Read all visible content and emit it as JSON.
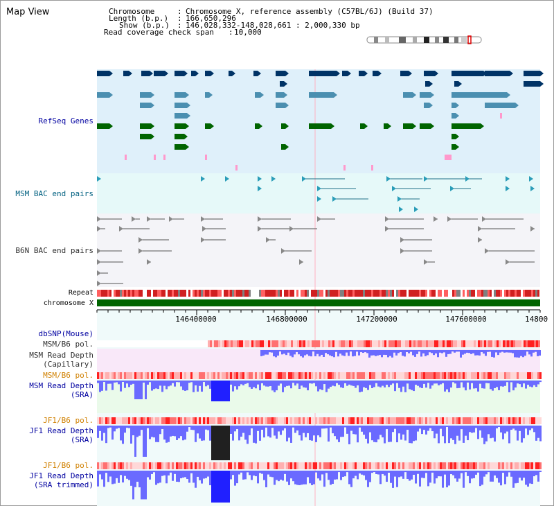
{
  "title": "Map View",
  "info": {
    "chromosome_key": "Chromosome",
    "chromosome_val": "Chromosome X, reference assembly (C57BL/6J) (Build 37)",
    "length_key": "Length (b.p.)",
    "length_val": "166,650,296",
    "show_key": "Show (b.p.)",
    "show_val": "146,028,332-148,028,661 : 2,000,330 bp",
    "read_cov_key": "Read coverage check span",
    "read_cov_val": "10,000"
  },
  "tracks": {
    "refseq": "RefSeq Genes",
    "msm_bac": "MSM BAC end pairs",
    "b6n_bac": "B6N BAC end pairs",
    "repeat": "Repeat",
    "chromosome": "chromosome X",
    "dbsnp": "dbSNP(Mouse)",
    "msm_b6_pol_1": "MSM/B6 pol.",
    "msm_depth_cap_1": "MSM Read Depth",
    "msm_depth_cap_2": "(Capillary)",
    "msm_b6_pol_2": "MSM/B6 pol.",
    "msm_depth_sra_1": "MSM Read Depth",
    "msm_depth_sra_2": "(SRA)",
    "jf1_b6_pol_1": "JF1/B6 pol.",
    "jf1_depth_sra_1": "JF1 Read Depth",
    "jf1_depth_sra_2": "(SRA)",
    "jf1_b6_pol_2": "JF1/B6 pol.",
    "jf1_depth_trim_1": "JF1 Read Depth",
    "jf1_depth_trim_2": "(SRA trimmed)"
  },
  "axis": {
    "ticks": [
      "146400000",
      "146800000",
      "147200000",
      "147600000",
      "14800"
    ]
  },
  "colors": {
    "label_blue": "#0000a0",
    "label_orange": "#d08000",
    "refseq_bg": "#dff0fa",
    "msm_bac_bg": "#e6f9f9",
    "b6n_bac_bg": "#f4f4f8",
    "chromosome_bar": "#006400",
    "depth_blue": "#4040ff",
    "pol_red": "#ff3030"
  }
}
